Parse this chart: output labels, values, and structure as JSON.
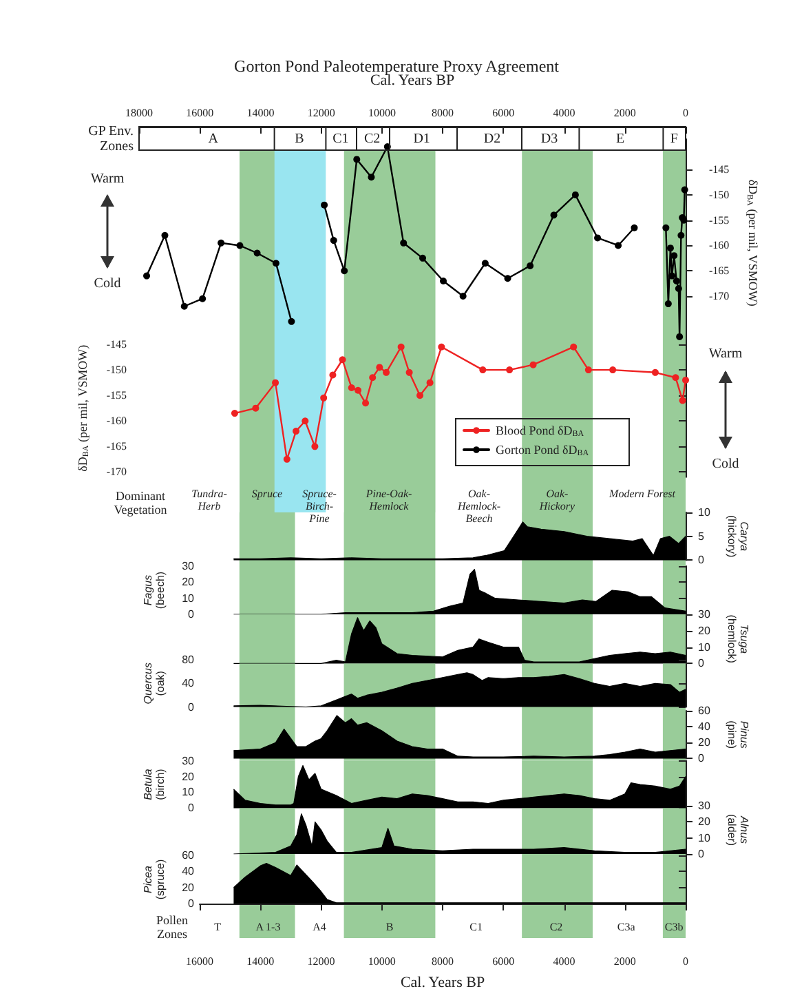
{
  "chart_data": [
    {
      "type": "line",
      "title": "Gorton Pond Paleotemperature Proxy Agreement",
      "xlabel": "Cal. Years BP",
      "ylabel": "δD$_{BA}$ (per mil, VSMOW)",
      "xlim": [
        18000,
        0
      ],
      "xticks": [
        18000,
        16000,
        14000,
        12000,
        10000,
        8000,
        6000,
        4000,
        2000,
        0
      ],
      "ylim": [
        -180,
        -139
      ],
      "yticks": [
        -145,
        -150,
        -155,
        -160,
        -165,
        -170
      ],
      "marker": "circle",
      "legend": "bottom right",
      "series": [
        {
          "name": "Gorton Pond δD$_{BA}$",
          "color": "#000000",
          "x": [
            17750,
            17150,
            16510,
            15910,
            15300,
            14680,
            14110,
            13490,
            12980,
            12500,
            11900,
            11590,
            11240,
            10830,
            10350,
            9820,
            9290,
            8660,
            7980,
            7330,
            6600,
            5860,
            5120,
            4340,
            3630,
            2900,
            2220,
            1690,
            1200,
            650,
            570,
            500,
            450,
            380,
            300,
            230,
            200,
            150,
            110,
            60,
            30
          ],
          "values": [
            -166,
            -158,
            -172,
            -170.5,
            -159.5,
            -160,
            -161.5,
            -163.5,
            -175,
            null,
            -152,
            -159,
            -165,
            -143,
            -146.5,
            -140.5,
            -159.5,
            -162.5,
            -167,
            -170,
            -163.5,
            -166.5,
            -164,
            -154,
            -150,
            -158.5,
            -160,
            -156.5,
            null,
            -156.5,
            -171.5,
            -160.5,
            -166,
            -162,
            -167,
            -168.5,
            -178,
            -158,
            -154.5,
            -155,
            -149
          ]
        }
      ],
      "bands": [
        {
          "axis": "x",
          "from": 14690,
          "to": 12860,
          "color": "#99cc99"
        },
        {
          "axis": "x",
          "from": 13540,
          "to": 11850,
          "color": "#99e5f0"
        },
        {
          "axis": "x",
          "from": 11250,
          "to": 8240,
          "color": "#99cc99"
        },
        {
          "axis": "x",
          "from": 5390,
          "to": 3060,
          "color": "#99cc99"
        },
        {
          "axis": "x",
          "from": 750,
          "to": 0,
          "color": "#99cc99"
        }
      ],
      "annotations": [
        "A",
        "B",
        "C1",
        "C2",
        "D1",
        "D2",
        "D3",
        "E",
        "F",
        "GP Env.\nZones",
        "Warm",
        "Cold"
      ]
    },
    {
      "type": "line",
      "ylabel": "δD$_{BA}$ (per mil, VSMOW)",
      "xlim": [
        18000,
        0
      ],
      "ylim": [
        -171,
        -144
      ],
      "yticks": [
        -145,
        -150,
        -155,
        -160,
        -165,
        -170
      ],
      "marker": "circle",
      "legend": "bottom right",
      "tick_labels": "y",
      "series": [
        {
          "name": "Blood Pond δD$_{BA}$",
          "color": "#ee2222",
          "x": [
            14850,
            14160,
            13510,
            13130,
            12830,
            12530,
            12210,
            11920,
            11620,
            11300,
            11000,
            10790,
            10540,
            10310,
            10080,
            9860,
            9370,
            9100,
            8750,
            8420,
            8040,
            6680,
            5800,
            5020,
            3690,
            3200,
            2400,
            1000,
            330,
            100,
            0
          ],
          "values": [
            -158.5,
            -157.5,
            -152.5,
            -167.5,
            -162,
            -160,
            -165,
            -155.5,
            -151,
            -148,
            -153.5,
            -154,
            -156.5,
            -151.5,
            -149.5,
            -150.5,
            -145.5,
            -150.5,
            -155,
            -152.5,
            -145.5,
            -150,
            -150,
            -149,
            -145.5,
            -150,
            -150,
            -150.5,
            -151.5,
            -156,
            -152
          ]
        }
      ],
      "bands": [
        {
          "axis": "x",
          "from": 14690,
          "to": 12860,
          "color": "#99cc99"
        },
        {
          "axis": "x",
          "from": 13540,
          "to": 11850,
          "color": "#99e5f0"
        },
        {
          "axis": "x",
          "from": 11250,
          "to": 8240,
          "color": "#99cc99"
        },
        {
          "axis": "x",
          "from": 5390,
          "to": 3060,
          "color": "#99cc99"
        },
        {
          "axis": "x",
          "from": 750,
          "to": 0,
          "color": "#99cc99"
        }
      ],
      "annotations": [
        "Warm",
        "Cold"
      ]
    },
    {
      "type": "area",
      "ylabel": "Carya\n(hickory)",
      "color": "#000000",
      "xlim": [
        16000,
        0
      ],
      "ylim": [
        0,
        10
      ],
      "yticks": [
        0,
        5,
        10
      ],
      "tick_labels": "y",
      "x": [
        14880,
        14000,
        13000,
        12000,
        11000,
        10000,
        9000,
        8000,
        7000,
        6570,
        5970,
        5660,
        5360,
        5210,
        4760,
        4000,
        3250,
        2490,
        1740,
        1430,
        1060,
        830,
        530,
        230,
        0
      ],
      "values": [
        0.3,
        0.3,
        0.5,
        0.3,
        0.5,
        0.3,
        0.3,
        0.3,
        0.5,
        1,
        2,
        5,
        8,
        7,
        6.5,
        6,
        5,
        4.5,
        4,
        4.5,
        1,
        4.5,
        5,
        3.5,
        5
      ],
      "bands": [
        {
          "axis": "x",
          "from": 14690,
          "to": 12860,
          "color": "#99cc99"
        },
        {
          "axis": "x",
          "from": 11250,
          "to": 8240,
          "color": "#99cc99"
        },
        {
          "axis": "x",
          "from": 5390,
          "to": 3060,
          "color": "#99cc99"
        },
        {
          "axis": "x",
          "from": 750,
          "to": 0,
          "color": "#99cc99"
        }
      ],
      "annotations": [
        "Tundra-\nHerb",
        "Spruce",
        "Spruce-\nBirch-\nPine",
        "Pine-Oak-\nHemlock",
        "Oak-\nHemlock-\nBeech",
        "Oak-\nHickory",
        "Modern Forest",
        "Dominant\nVegetation"
      ]
    },
    {
      "type": "area",
      "ylabel": "Fagus\n(beech)",
      "color": "#000000",
      "xlim": [
        16000,
        0
      ],
      "ylim": [
        0,
        30
      ],
      "yticks": [
        0,
        10,
        20,
        30
      ],
      "tick_labels": "y",
      "x": [
        14880,
        12000,
        11200,
        10000,
        9000,
        8300,
        7780,
        7330,
        7100,
        6950,
        6800,
        6570,
        6270,
        5510,
        4760,
        4000,
        3400,
        2950,
        2420,
        1890,
        1510,
        1130,
        680,
        0
      ],
      "values": [
        0,
        0,
        1,
        1,
        1,
        2,
        5,
        7,
        25,
        28,
        15,
        13,
        10,
        9,
        8,
        7,
        9,
        8,
        15,
        14,
        11,
        11,
        4,
        2
      ],
      "bands": [
        {
          "axis": "x",
          "from": 14690,
          "to": 12860,
          "color": "#99cc99"
        },
        {
          "axis": "x",
          "from": 11250,
          "to": 8240,
          "color": "#99cc99"
        },
        {
          "axis": "x",
          "from": 5390,
          "to": 3060,
          "color": "#99cc99"
        },
        {
          "axis": "x",
          "from": 750,
          "to": 0,
          "color": "#99cc99"
        }
      ]
    },
    {
      "type": "area",
      "ylabel": "Tsuga\n(hemlock)",
      "color": "#000000",
      "xlim": [
        16000,
        0
      ],
      "ylim": [
        0,
        30
      ],
      "yticks": [
        0,
        10,
        20,
        30
      ],
      "tick_labels": "y",
      "x": [
        14880,
        12000,
        11500,
        11200,
        11000,
        10800,
        10600,
        10400,
        10200,
        10000,
        9500,
        9000,
        8000,
        7500,
        7000,
        6800,
        6500,
        6000,
        5500,
        5300,
        5000,
        4000,
        3500,
        3000,
        2500,
        2000,
        1500,
        1000,
        500,
        0
      ],
      "values": [
        0,
        0,
        2,
        1,
        18,
        28,
        20,
        26,
        22,
        12,
        6,
        5,
        4,
        8,
        10,
        15,
        13,
        10,
        10,
        2,
        1,
        1,
        1,
        3,
        5,
        6,
        7,
        6,
        7,
        5
      ],
      "bands": [
        {
          "axis": "x",
          "from": 14690,
          "to": 12860,
          "color": "#99cc99"
        },
        {
          "axis": "x",
          "from": 11250,
          "to": 8240,
          "color": "#99cc99"
        },
        {
          "axis": "x",
          "from": 5390,
          "to": 3060,
          "color": "#99cc99"
        },
        {
          "axis": "x",
          "from": 750,
          "to": 0,
          "color": "#99cc99"
        }
      ]
    },
    {
      "type": "area",
      "ylabel": "Quercus\n(oak)",
      "color": "#000000",
      "xlim": [
        16000,
        0
      ],
      "ylim": [
        0,
        80
      ],
      "yticks": [
        0,
        40,
        80
      ],
      "tick_labels": "y",
      "x": [
        14880,
        14000,
        13000,
        12500,
        12000,
        11500,
        11200,
        11000,
        10800,
        10500,
        10000,
        9500,
        9000,
        8500,
        8000,
        7500,
        7200,
        7000,
        6700,
        6500,
        6000,
        5500,
        5000,
        4500,
        4000,
        3500,
        3000,
        2500,
        2000,
        1500,
        1000,
        500,
        200,
        0
      ],
      "values": [
        2,
        3,
        1,
        0,
        2,
        12,
        18,
        22,
        15,
        20,
        25,
        32,
        40,
        45,
        50,
        55,
        58,
        55,
        45,
        50,
        48,
        50,
        50,
        52,
        55,
        48,
        40,
        35,
        40,
        35,
        40,
        38,
        25,
        30
      ],
      "bands": [
        {
          "axis": "x",
          "from": 14690,
          "to": 12860,
          "color": "#99cc99"
        },
        {
          "axis": "x",
          "from": 11250,
          "to": 8240,
          "color": "#99cc99"
        },
        {
          "axis": "x",
          "from": 5390,
          "to": 3060,
          "color": "#99cc99"
        },
        {
          "axis": "x",
          "from": 750,
          "to": 0,
          "color": "#99cc99"
        }
      ]
    },
    {
      "type": "area",
      "ylabel": "Pinus\n(pine)",
      "color": "#000000",
      "xlim": [
        16000,
        0
      ],
      "ylim": [
        0,
        60
      ],
      "yticks": [
        0,
        20,
        40,
        60
      ],
      "tick_labels": "y",
      "x": [
        14880,
        14000,
        13500,
        13220,
        12800,
        12500,
        12200,
        12000,
        11800,
        11480,
        11200,
        11000,
        10800,
        10500,
        10000,
        9500,
        9000,
        8500,
        8000,
        7500,
        7000,
        6000,
        5000,
        4000,
        3000,
        2500,
        2000,
        1500,
        1000,
        500,
        0
      ],
      "values": [
        10,
        12,
        20,
        37,
        15,
        15,
        22,
        25,
        35,
        54,
        45,
        50,
        42,
        45,
        35,
        22,
        15,
        12,
        12,
        3,
        2,
        2,
        3,
        2,
        3,
        5,
        8,
        12,
        8,
        10,
        12
      ],
      "bands": [
        {
          "axis": "x",
          "from": 14690,
          "to": 12860,
          "color": "#99cc99"
        },
        {
          "axis": "x",
          "from": 11250,
          "to": 8240,
          "color": "#99cc99"
        },
        {
          "axis": "x",
          "from": 5390,
          "to": 3060,
          "color": "#99cc99"
        },
        {
          "axis": "x",
          "from": 750,
          "to": 0,
          "color": "#99cc99"
        }
      ]
    },
    {
      "type": "area",
      "ylabel": "Betula\n(birch)",
      "color": "#000000",
      "xlim": [
        16000,
        0
      ],
      "ylim": [
        0,
        30
      ],
      "yticks": [
        0,
        10,
        20,
        30
      ],
      "tick_labels": "y",
      "x": [
        14880,
        14500,
        14000,
        13500,
        13000,
        12900,
        12750,
        12600,
        12400,
        12200,
        12000,
        11500,
        11000,
        10500,
        10000,
        9500,
        9000,
        8500,
        8000,
        7500,
        7000,
        6500,
        6000,
        5500,
        5000,
        4500,
        4000,
        3500,
        3000,
        2500,
        2000,
        1800,
        1500,
        1000,
        500,
        200,
        0
      ],
      "values": [
        12,
        5,
        3,
        2,
        2,
        3,
        20,
        27,
        18,
        22,
        12,
        8,
        3,
        5,
        7,
        6,
        9,
        8,
        6,
        4,
        4,
        3,
        5,
        6,
        7,
        8,
        9,
        8,
        6,
        5,
        9,
        16,
        15,
        14,
        12,
        14,
        20
      ],
      "bands": [
        {
          "axis": "x",
          "from": 14690,
          "to": 12860,
          "color": "#99cc99"
        },
        {
          "axis": "x",
          "from": 11250,
          "to": 8240,
          "color": "#99cc99"
        },
        {
          "axis": "x",
          "from": 5390,
          "to": 3060,
          "color": "#99cc99"
        },
        {
          "axis": "x",
          "from": 750,
          "to": 0,
          "color": "#99cc99"
        }
      ]
    },
    {
      "type": "area",
      "ylabel": "Alnus\n(alder)",
      "color": "#000000",
      "xlim": [
        16000,
        0
      ],
      "ylim": [
        0,
        30
      ],
      "yticks": [
        0,
        10,
        20,
        30
      ],
      "tick_labels": "y",
      "x": [
        14880,
        13500,
        13000,
        12800,
        12650,
        12500,
        12300,
        12200,
        12000,
        11800,
        11500,
        11000,
        10000,
        9800,
        9600,
        9000,
        8000,
        7000,
        6000,
        5000,
        4000,
        3000,
        2000,
        1000,
        0
      ],
      "values": [
        0,
        1,
        5,
        12,
        25,
        18,
        5,
        20,
        15,
        8,
        1,
        1,
        4,
        16,
        5,
        3,
        2,
        3,
        3,
        3,
        4,
        2,
        1,
        1,
        3
      ],
      "bands": [
        {
          "axis": "x",
          "from": 14690,
          "to": 12860,
          "color": "#99cc99"
        },
        {
          "axis": "x",
          "from": 11250,
          "to": 8240,
          "color": "#99cc99"
        },
        {
          "axis": "x",
          "from": 5390,
          "to": 3060,
          "color": "#99cc99"
        },
        {
          "axis": "x",
          "from": 750,
          "to": 0,
          "color": "#99cc99"
        }
      ]
    },
    {
      "type": "area",
      "ylabel": "Picea\n(spruce)",
      "xlabel": "Cal. Years BP",
      "color": "#000000",
      "xlim": [
        16000,
        0
      ],
      "xticks": [
        16000,
        14000,
        12000,
        10000,
        8000,
        6000,
        4000,
        2000,
        0
      ],
      "ylim": [
        0,
        60
      ],
      "yticks": [
        0,
        20,
        40,
        60
      ],
      "x": [
        14880,
        14500,
        14000,
        13800,
        13500,
        13000,
        12800,
        12600,
        12300,
        12000,
        11800,
        11500,
        10000,
        0
      ],
      "values": [
        20,
        33,
        47,
        50,
        45,
        35,
        48,
        40,
        28,
        15,
        5,
        1,
        1,
        1
      ],
      "bands": [
        {
          "axis": "x",
          "from": 14690,
          "to": 12860,
          "color": "#99cc99"
        },
        {
          "axis": "x",
          "from": 11250,
          "to": 8240,
          "color": "#99cc99"
        },
        {
          "axis": "x",
          "from": 5390,
          "to": 3060,
          "color": "#99cc99"
        },
        {
          "axis": "x",
          "from": 750,
          "to": 0,
          "color": "#99cc99"
        }
      ],
      "annotations": [
        "T",
        "A 1-3",
        "A4",
        "B",
        "C1",
        "C2",
        "C3a",
        "C3b",
        "Pollen\nZones"
      ]
    }
  ]
}
